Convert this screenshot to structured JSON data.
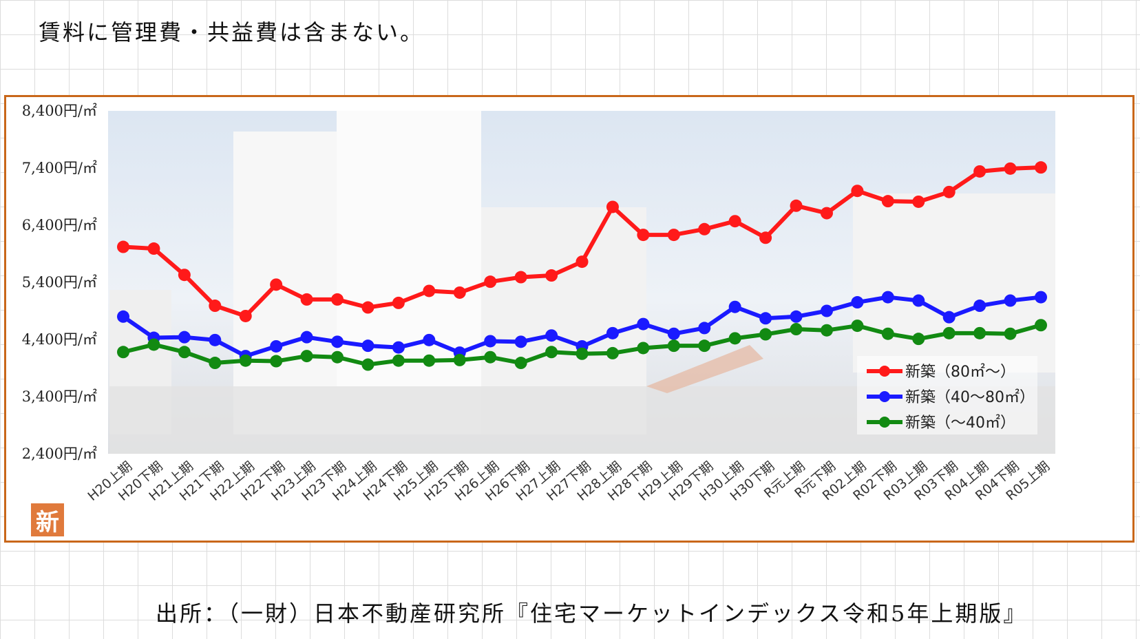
{
  "note": "賃料に管理費・共益費は含まない。",
  "source": "出所：（一財）日本不動産研究所『住宅マーケットインデックス令和5年上期版』",
  "badge": "新",
  "colors": {
    "frame": "#c9671a",
    "badge": "#e07a3c",
    "red": "#ff1a1a",
    "blue": "#1a1aff",
    "green": "#128a12"
  },
  "chart_data": {
    "type": "line",
    "ytick_labels": [
      "8,400円/㎡",
      "7,400円/㎡",
      "6,400円/㎡",
      "5,400円/㎡",
      "4,400円/㎡",
      "3,400円/㎡",
      "2,400円/㎡"
    ],
    "ylim": [
      2400,
      8400
    ],
    "grid": false,
    "legend_position": "bottom-right",
    "categories": [
      "H20上期",
      "H20下期",
      "H21上期",
      "H21下期",
      "H22上期",
      "H22下期",
      "H23上期",
      "H23下期",
      "H24上期",
      "H24下期",
      "H25上期",
      "H25下期",
      "H26上期",
      "H26下期",
      "H27上期",
      "H27下期",
      "H28上期",
      "H28下期",
      "H29上期",
      "H29下期",
      "H30上期",
      "H30下期",
      "R元上期",
      "R元下期",
      "R02上期",
      "R02下期",
      "R03上期",
      "R03下期",
      "R04上期",
      "R04下期",
      "R05上期"
    ],
    "series": [
      {
        "name": "新築（80㎡～）",
        "color": "#ff1a1a",
        "values": [
          6020,
          5990,
          5530,
          4990,
          4810,
          5360,
          5100,
          5100,
          4960,
          5040,
          5250,
          5220,
          5410,
          5490,
          5520,
          5760,
          6720,
          6230,
          6230,
          6330,
          6470,
          6180,
          6740,
          6610,
          7000,
          6820,
          6810,
          6980,
          7340,
          7390,
          7410
        ]
      },
      {
        "name": "新築（40～80㎡）",
        "color": "#1a1aff",
        "values": [
          4800,
          4430,
          4440,
          4390,
          4110,
          4280,
          4440,
          4360,
          4290,
          4260,
          4390,
          4170,
          4370,
          4360,
          4470,
          4280,
          4510,
          4670,
          4500,
          4600,
          4970,
          4770,
          4800,
          4900,
          5050,
          5140,
          5080,
          4790,
          4990,
          5080,
          5140
        ]
      },
      {
        "name": "新築（～40㎡）",
        "color": "#128a12",
        "values": [
          4180,
          4310,
          4180,
          3990,
          4030,
          4020,
          4110,
          4090,
          3960,
          4030,
          4030,
          4040,
          4090,
          3990,
          4180,
          4150,
          4160,
          4250,
          4290,
          4290,
          4420,
          4490,
          4580,
          4560,
          4640,
          4500,
          4410,
          4510,
          4510,
          4500,
          4650
        ]
      }
    ]
  }
}
